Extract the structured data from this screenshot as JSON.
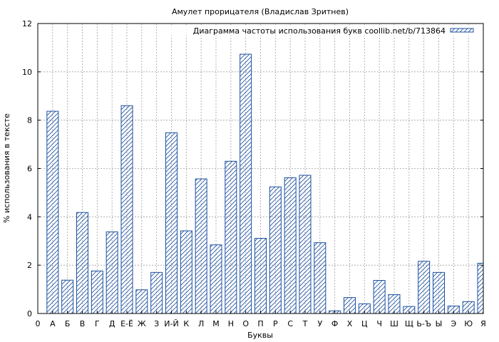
{
  "chart_data": {
    "type": "bar",
    "title": "Амулет прорицателя (Владислав Зритнев)",
    "xlabel": "Буквы",
    "ylabel": "% использования в тексте",
    "legend": {
      "label": "Диаграмма частоты использования букв coollib.net/b/713864",
      "placement": "top-right"
    },
    "ylim": [
      0,
      12
    ],
    "yticks": [
      0,
      2,
      4,
      6,
      8,
      10,
      12
    ],
    "grid": true,
    "x_start_label": "0",
    "categories": [
      "А",
      "Б",
      "В",
      "Г",
      "Д",
      "Е-Ё",
      "Ж",
      "З",
      "И-Й",
      "К",
      "Л",
      "М",
      "Н",
      "О",
      "П",
      "Р",
      "С",
      "Т",
      "У",
      "Ф",
      "Х",
      "Ц",
      "Ч",
      "Ш",
      "Щ",
      "Ь-Ъ",
      "Ы",
      "Э",
      "Ю",
      "Я"
    ],
    "values": [
      8.37,
      1.38,
      4.18,
      1.76,
      3.38,
      8.6,
      0.98,
      1.7,
      7.48,
      3.42,
      5.57,
      2.84,
      6.3,
      10.73,
      3.11,
      5.24,
      5.62,
      5.72,
      2.93,
      0.11,
      0.66,
      0.4,
      1.37,
      0.78,
      0.29,
      2.16,
      1.7,
      0.31,
      0.49,
      2.08
    ],
    "colors": {
      "bar_stroke": "#1b4fa0",
      "bar_hatch": "#1b4fa0",
      "grid": "#a0a0a0",
      "axis": "#000000"
    }
  }
}
